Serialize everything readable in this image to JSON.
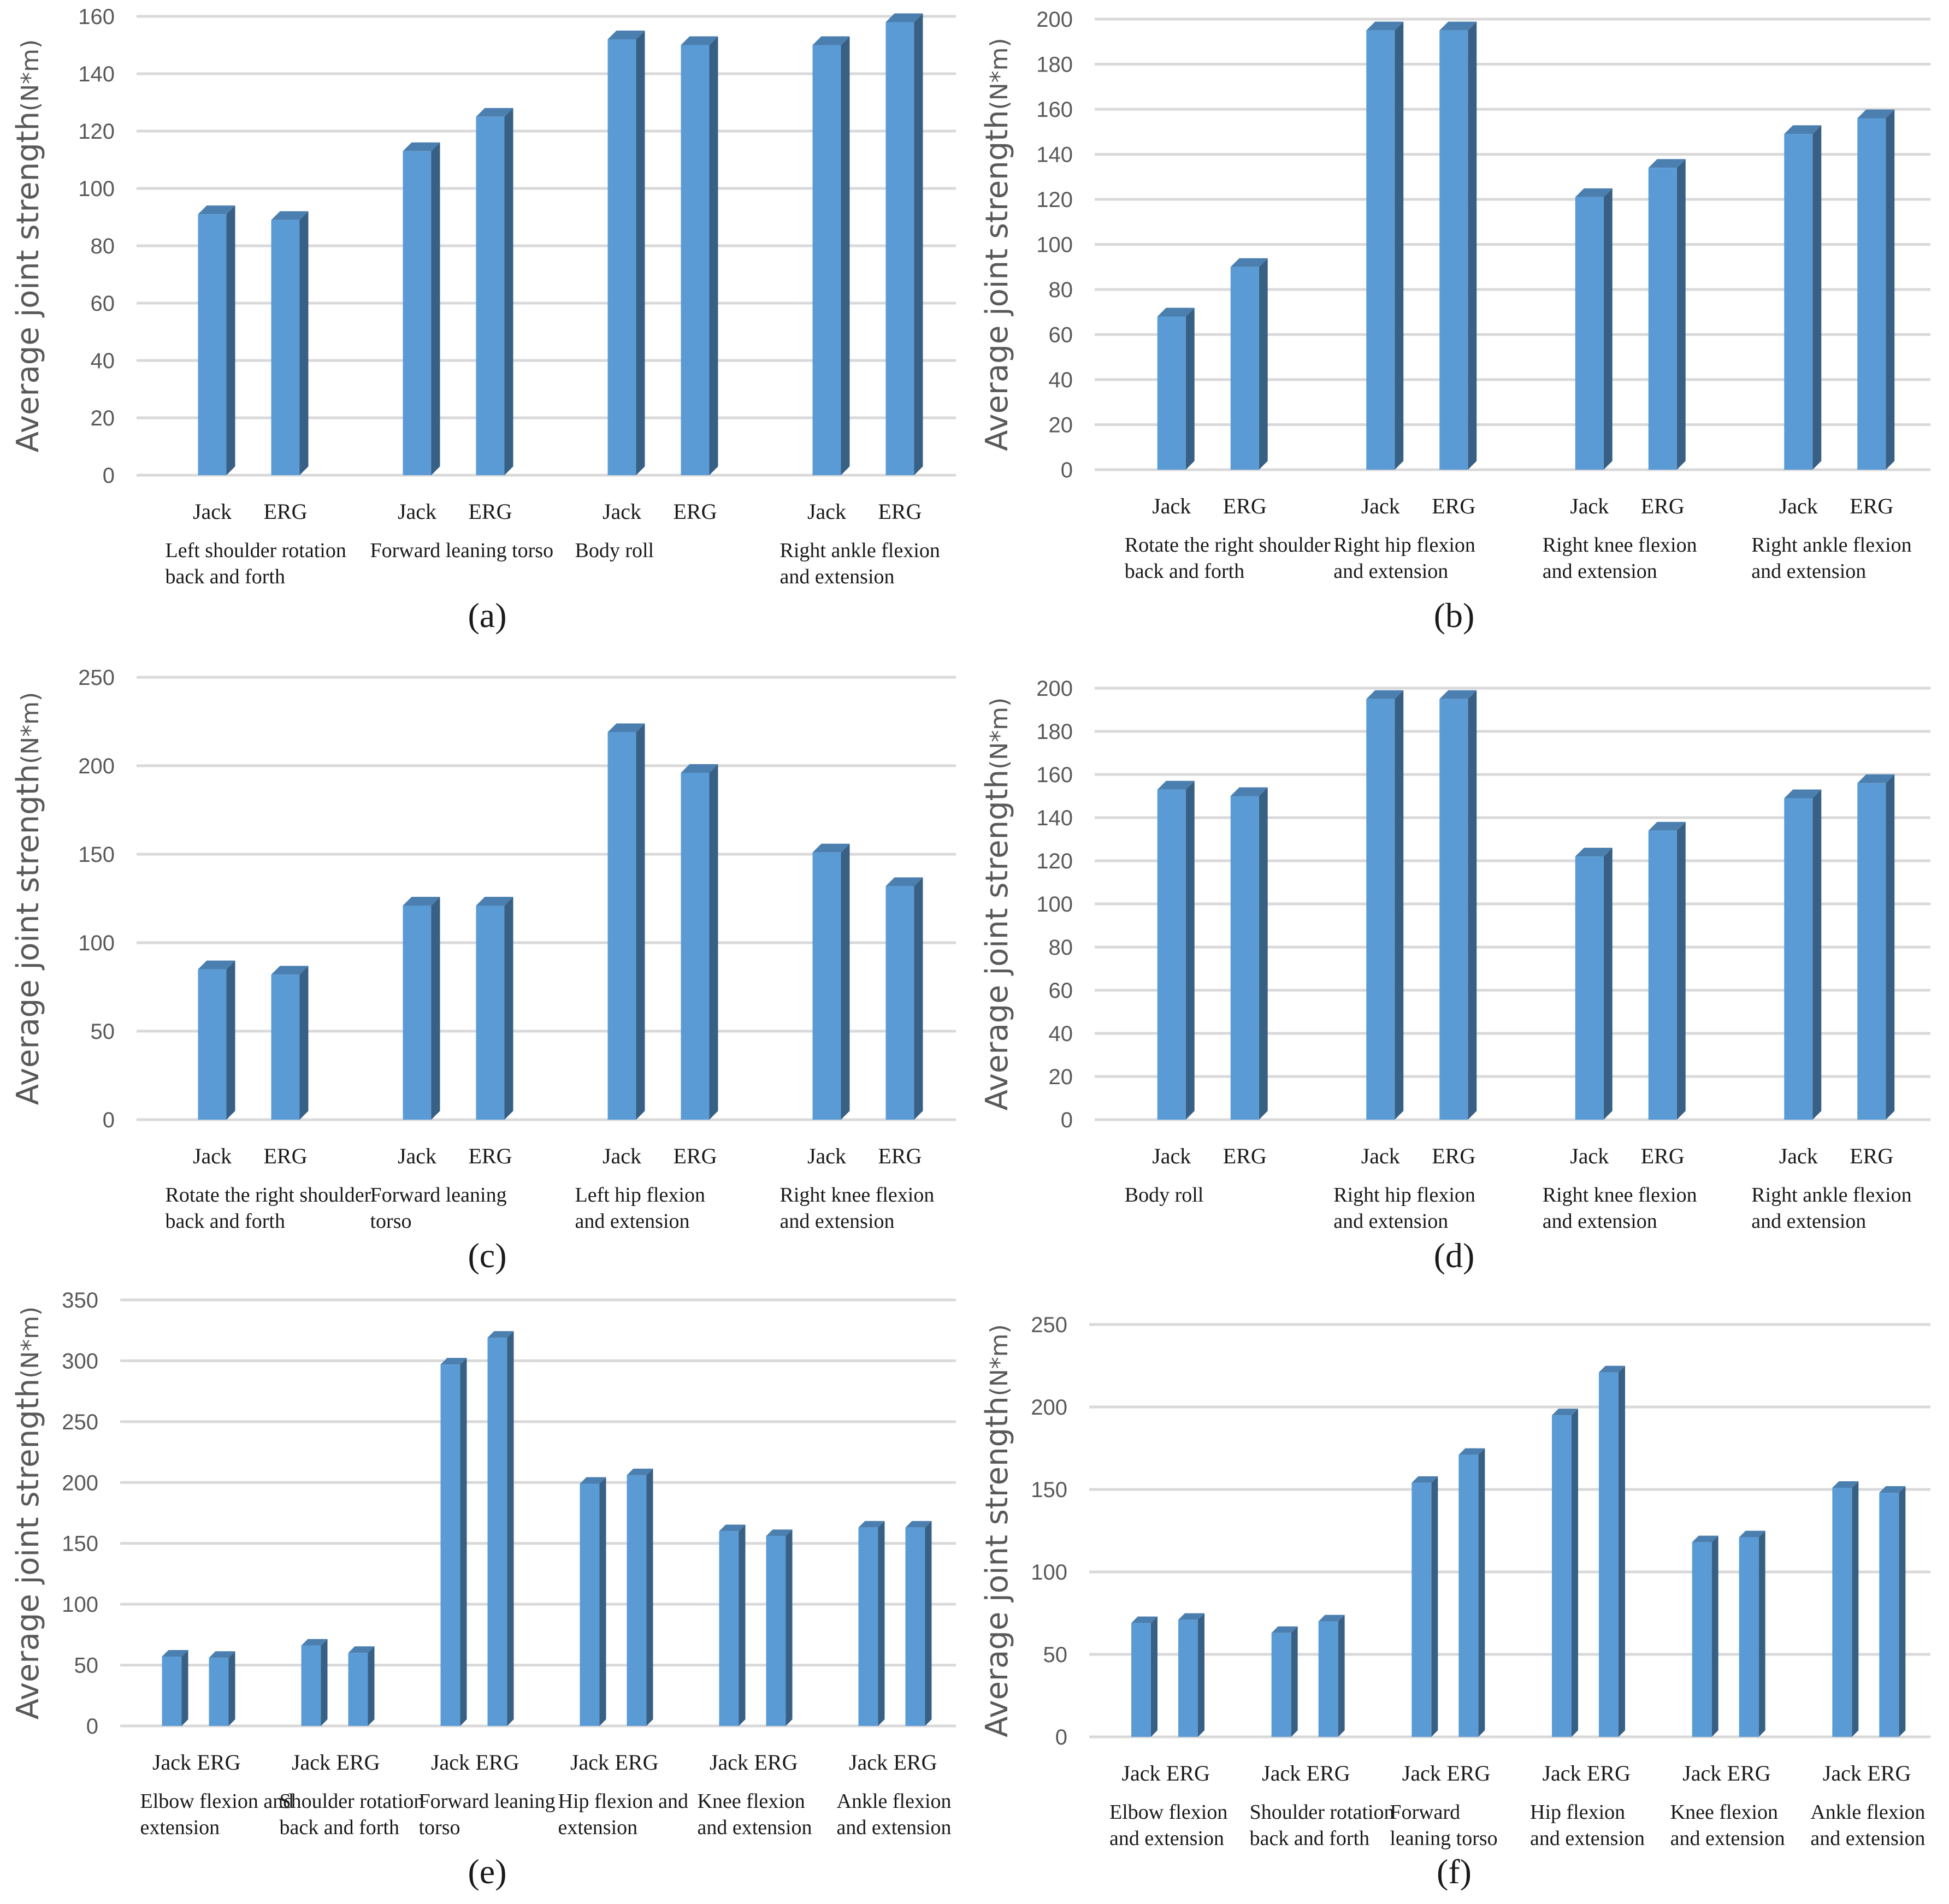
{
  "figure": {
    "captions": [
      "(a)",
      "(b)",
      "(c)",
      "(d)",
      "(e)",
      "(f)"
    ]
  },
  "chart_data": [
    {
      "type": "bar",
      "panel": "(a)",
      "ylabel": "Average joint strength",
      "yunit": "(N*m)",
      "ylim": [
        0,
        160
      ],
      "yticks": [
        0,
        20,
        40,
        60,
        80,
        100,
        120,
        140,
        160
      ],
      "series_names": [
        "Jack",
        "ERG"
      ],
      "categories": [
        {
          "label": [
            "Left shoulder rotation",
            "back and forth"
          ],
          "values": [
            91,
            89
          ]
        },
        {
          "label": [
            "Forward leaning torso"
          ],
          "values": [
            113,
            125
          ]
        },
        {
          "label": [
            "Body roll"
          ],
          "values": [
            152,
            150
          ]
        },
        {
          "label": [
            "Right ankle flexion",
            "and extension"
          ],
          "values": [
            150,
            158
          ]
        }
      ],
      "color": "#5b9bd5"
    },
    {
      "type": "bar",
      "panel": "(b)",
      "ylabel": "Average joint strength",
      "yunit": "(N*m)",
      "ylim": [
        0,
        200
      ],
      "yticks": [
        0,
        20,
        40,
        60,
        80,
        100,
        120,
        140,
        160,
        180,
        200
      ],
      "series_names": [
        "Jack",
        "ERG"
      ],
      "categories": [
        {
          "label": [
            "Rotate the right shoulder",
            "back and forth"
          ],
          "values": [
            68,
            90
          ]
        },
        {
          "label": [
            "Right hip flexion",
            "and extension"
          ],
          "values": [
            195,
            195
          ]
        },
        {
          "label": [
            "Right knee flexion",
            "and extension"
          ],
          "values": [
            121,
            134
          ]
        },
        {
          "label": [
            "Right ankle flexion",
            "and extension"
          ],
          "values": [
            149,
            156
          ]
        }
      ],
      "color": "#5b9bd5"
    },
    {
      "type": "bar",
      "panel": "(c)",
      "ylabel": "Average joint strength",
      "yunit": "(N*m)",
      "ylim": [
        0,
        250
      ],
      "yticks": [
        0,
        50,
        100,
        150,
        200,
        250
      ],
      "series_names": [
        "Jack",
        "ERG"
      ],
      "categories": [
        {
          "label": [
            "Rotate the right shoulder",
            "back and forth"
          ],
          "values": [
            85,
            82
          ]
        },
        {
          "label": [
            "Forward leaning",
            "torso"
          ],
          "values": [
            121,
            121
          ]
        },
        {
          "label": [
            "Left hip flexion",
            "and extension"
          ],
          "values": [
            219,
            196
          ]
        },
        {
          "label": [
            "Right knee flexion",
            "and extension"
          ],
          "values": [
            151,
            132
          ]
        }
      ],
      "color": "#5b9bd5"
    },
    {
      "type": "bar",
      "panel": "(d)",
      "ylabel": "Average joint strength",
      "yunit": "(N*m)",
      "ylim": [
        0,
        200
      ],
      "yticks": [
        0,
        20,
        40,
        60,
        80,
        100,
        120,
        140,
        160,
        180,
        200
      ],
      "series_names": [
        "Jack",
        "ERG"
      ],
      "categories": [
        {
          "label": [
            "Body roll"
          ],
          "values": [
            153,
            150
          ]
        },
        {
          "label": [
            "Right hip flexion",
            "and extension"
          ],
          "values": [
            195,
            195
          ]
        },
        {
          "label": [
            "Right knee flexion",
            "and extension"
          ],
          "values": [
            122,
            134
          ]
        },
        {
          "label": [
            "Right ankle flexion",
            "and extension"
          ],
          "values": [
            149,
            156
          ]
        }
      ],
      "color": "#5b9bd5"
    },
    {
      "type": "bar",
      "panel": "(e)",
      "ylabel": "Average joint strength",
      "yunit": "(N*m)",
      "ylim": [
        0,
        350
      ],
      "yticks": [
        0,
        50,
        100,
        150,
        200,
        250,
        300,
        350
      ],
      "series_names": [
        "Jack",
        "ERG"
      ],
      "categories": [
        {
          "label": [
            "Elbow flexion and",
            "extension"
          ],
          "values": [
            57,
            56
          ]
        },
        {
          "label": [
            "Shoulder rotation",
            "back and forth"
          ],
          "values": [
            66,
            60
          ]
        },
        {
          "label": [
            "Forward leaning",
            "torso"
          ],
          "values": [
            297,
            319
          ]
        },
        {
          "label": [
            "Hip flexion and",
            "extension"
          ],
          "values": [
            199,
            206
          ]
        },
        {
          "label": [
            "Knee flexion",
            "and extension"
          ],
          "values": [
            160,
            156
          ]
        },
        {
          "label": [
            "Ankle flexion",
            "and extension"
          ],
          "values": [
            163,
            163
          ]
        }
      ],
      "color": "#5b9bd5"
    },
    {
      "type": "bar",
      "panel": "(f)",
      "ylabel": "Average joint strength",
      "yunit": "(N*m)",
      "ylim": [
        0,
        250
      ],
      "yticks": [
        0,
        50,
        100,
        150,
        200,
        250
      ],
      "series_names": [
        "Jack",
        "ERG"
      ],
      "categories": [
        {
          "label": [
            "Elbow flexion",
            "and extension"
          ],
          "values": [
            69,
            71
          ]
        },
        {
          "label": [
            "Shoulder rotation",
            "back and forth"
          ],
          "values": [
            63,
            70
          ]
        },
        {
          "label": [
            "Forward",
            "leaning torso"
          ],
          "values": [
            154,
            171
          ]
        },
        {
          "label": [
            "Hip flexion",
            "and extension"
          ],
          "values": [
            195,
            221
          ]
        },
        {
          "label": [
            "Knee flexion",
            "and extension"
          ],
          "values": [
            118,
            121
          ]
        },
        {
          "label": [
            "Ankle flexion",
            "and extension"
          ],
          "values": [
            151,
            148
          ]
        }
      ],
      "color": "#5b9bd5"
    }
  ]
}
